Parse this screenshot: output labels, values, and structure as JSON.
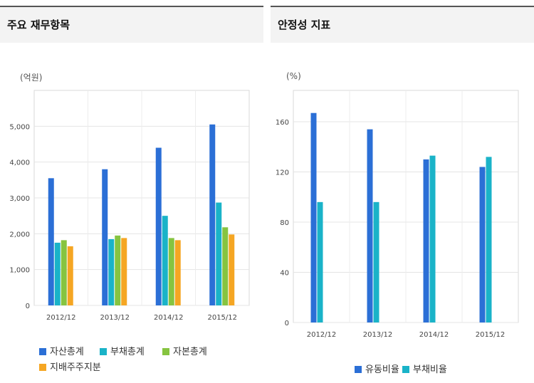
{
  "left_panel": {
    "title": "주요 재무항목",
    "unit": "(억원)"
  },
  "right_panel": {
    "title": "안정성 지표",
    "unit": "(%)"
  },
  "colors": {
    "series1": "#2b6fd6",
    "series2": "#1ab3c8",
    "series3": "#86c440",
    "series4": "#f5a623"
  },
  "chart_data": [
    {
      "type": "bar",
      "categories": [
        "2012/12",
        "2013/12",
        "2014/12",
        "2015/12"
      ],
      "ylim": [
        0,
        6000
      ],
      "yticks": [
        0,
        1000,
        2000,
        3000,
        4000,
        5000
      ],
      "ytick_labels": [
        "0",
        "1,000",
        "2,000",
        "3,000",
        "4,000",
        "5,000"
      ],
      "series": [
        {
          "name": "자산총계",
          "values": [
            3550,
            3800,
            4400,
            5050
          ]
        },
        {
          "name": "부채총계",
          "values": [
            1750,
            1850,
            2500,
            2870
          ]
        },
        {
          "name": "자본총계",
          "values": [
            1820,
            1950,
            1880,
            2180
          ]
        },
        {
          "name": "지배주주지분",
          "values": [
            1650,
            1880,
            1820,
            1980
          ]
        }
      ],
      "legend": "bottom"
    },
    {
      "type": "bar",
      "categories": [
        "2012/12",
        "2013/12",
        "2014/12",
        "2015/12"
      ],
      "ylim": [
        0,
        185
      ],
      "yticks": [
        0,
        40,
        80,
        120,
        160
      ],
      "ytick_labels": [
        "0",
        "40",
        "80",
        "120",
        "160"
      ],
      "series": [
        {
          "name": "유동비율",
          "values": [
            167,
            154,
            130,
            124
          ]
        },
        {
          "name": "부채비율",
          "values": [
            96,
            96,
            133,
            132
          ]
        }
      ],
      "legend": "bottom"
    }
  ]
}
